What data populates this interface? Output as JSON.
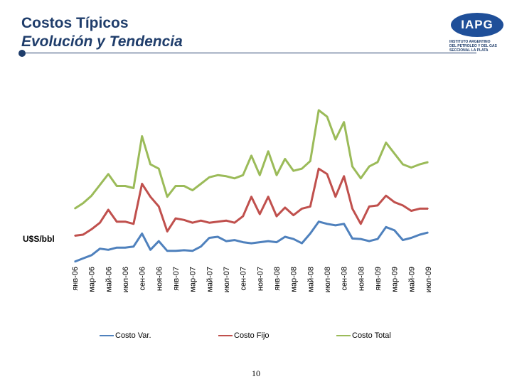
{
  "header": {
    "title_line1": "Costos Típicos",
    "title_line2": "Evolución y Tendencia"
  },
  "logo": {
    "mark": "IAPG",
    "line1": "INSTITUTO ARGENTINO",
    "line2": "DEL PETROLEO Y DEL GAS",
    "line3": "SECCIONAL LA PLATA"
  },
  "page_number": "10",
  "chart_data": {
    "type": "line",
    "title": "",
    "ylabel": "U$S/bbl",
    "xlabel": "",
    "ylim": [
      0,
      70
    ],
    "grid": false,
    "legend_position": "bottom",
    "x_tick_labels": [
      "янв-06",
      "мар-06",
      "май-06",
      "июл-06",
      "сен-06",
      "ноя-06",
      "янв-07",
      "мар-07",
      "май-07",
      "июл-07",
      "сен-07",
      "ноя-07",
      "янв-08",
      "мар-08",
      "май-08",
      "июл-08",
      "сен-08",
      "ноя-08",
      "янв-09",
      "мар-09",
      "май-09",
      "июл-09"
    ],
    "categories": [
      "янв-06",
      "фев-06",
      "мар-06",
      "апр-06",
      "май-06",
      "июн-06",
      "июл-06",
      "авг-06",
      "сен-06",
      "окт-06",
      "ноя-06",
      "дек-06",
      "янв-07",
      "фев-07",
      "мар-07",
      "апр-07",
      "май-07",
      "июн-07",
      "июл-07",
      "авг-07",
      "сен-07",
      "окт-07",
      "ноя-07",
      "дек-07",
      "янв-08",
      "фев-08",
      "мар-08",
      "апр-08",
      "май-08",
      "июн-08",
      "июл-08",
      "авг-08",
      "сен-08",
      "окт-08",
      "ноя-08",
      "дек-08",
      "янв-09",
      "фев-09",
      "мар-09",
      "апр-09",
      "май-09",
      "июн-09",
      "июл-09"
    ],
    "series": [
      {
        "name": "Costo Var.",
        "color": "#4f81bd",
        "values": [
          0,
          1.5,
          3,
          6,
          5.5,
          6.5,
          6.5,
          7,
          13,
          5.5,
          9.5,
          5,
          5,
          5.3,
          5,
          7,
          11,
          11.5,
          9.5,
          10,
          9,
          8.5,
          9,
          9.5,
          9,
          11.5,
          10.5,
          8.5,
          13,
          18.5,
          17.5,
          16.8,
          17.5,
          10.7,
          10.5,
          9.5,
          10.5,
          16,
          14.5,
          10,
          11,
          12.5,
          13.5
        ]
      },
      {
        "name": "Costo Fijo",
        "color": "#c0504d",
        "values": [
          12,
          12.5,
          15,
          18,
          24,
          18.5,
          18.5,
          17.5,
          36,
          30,
          25.5,
          14,
          20,
          19.3,
          18,
          19,
          18,
          18.5,
          19,
          18,
          21,
          30,
          22,
          30,
          21,
          25,
          21.5,
          24.5,
          25.5,
          43,
          40.5,
          30,
          39.5,
          24.5,
          17.5,
          25.5,
          26,
          30.5,
          27.5,
          26,
          23.5,
          24.5,
          24.5
        ]
      },
      {
        "name": "Costo Total",
        "color": "#9bbb59",
        "values": [
          24.5,
          27,
          30.5,
          35.5,
          40.5,
          35,
          35,
          34,
          58,
          45,
          43,
          30,
          35,
          35,
          33,
          36,
          39,
          40,
          39.5,
          38.5,
          40,
          49,
          40,
          51,
          40,
          47.5,
          42,
          43,
          46.5,
          70,
          67,
          56.5,
          64.5,
          44,
          38.5,
          44,
          46,
          55,
          50,
          45,
          43.5,
          45,
          46
        ]
      }
    ]
  }
}
